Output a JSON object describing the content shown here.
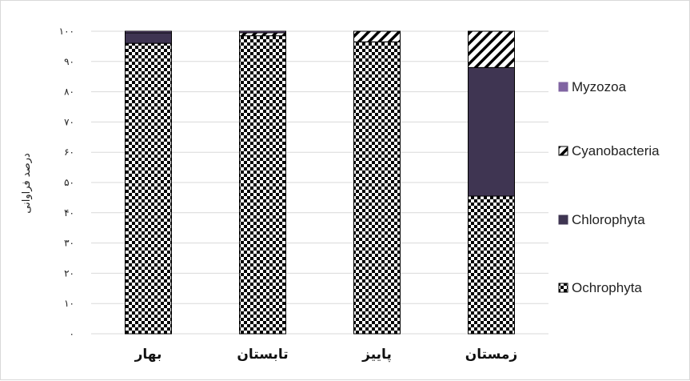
{
  "chart_data": {
    "type": "bar",
    "stacked": true,
    "ylabel": "درصد فراوانی",
    "ylim": [
      0,
      100
    ],
    "yticks": [
      0,
      10,
      20,
      30,
      40,
      50,
      60,
      70,
      80,
      90,
      100
    ],
    "ytick_labels": [
      "٠",
      "١٠",
      "٢٠",
      "٣٠",
      "۴٠",
      "۵٠",
      "۶٠",
      "٧٠",
      "٨٠",
      "٩٠",
      "١٠٠"
    ],
    "grid": true,
    "legend_position": "right",
    "categories": [
      "بهار",
      "تابستان",
      "پاییز",
      "زمستان"
    ],
    "series": [
      {
        "name": "Ochrophyta",
        "pattern": "checker",
        "color": "#000000",
        "values": [
          96,
          98.5,
          96.5,
          45.5
        ]
      },
      {
        "name": "Chlorophyta",
        "pattern": "solid",
        "color": "#3f3552",
        "values": [
          3.5,
          0,
          0,
          42.5
        ]
      },
      {
        "name": "Cyanobacteria",
        "pattern": "diagonal",
        "color": "#000000",
        "values": [
          0,
          1,
          3.5,
          12
        ]
      },
      {
        "name": "Myzozoa",
        "pattern": "solid",
        "color": "#8064a2",
        "values": [
          0.5,
          0.5,
          0,
          0
        ]
      }
    ],
    "legend_order": [
      "Myzozoa",
      "Cyanobacteria",
      "Chlorophyta",
      "Ochrophyta"
    ]
  }
}
